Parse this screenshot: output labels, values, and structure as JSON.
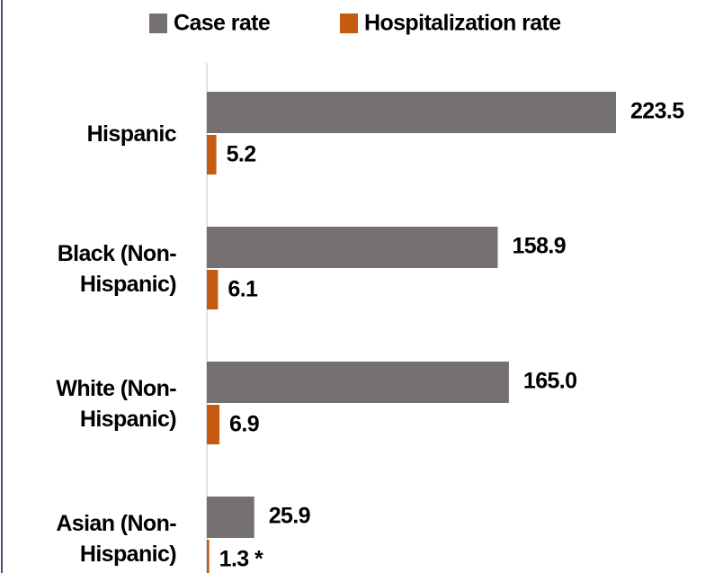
{
  "chart_data": {
    "type": "hbar",
    "categories": [
      "Hispanic",
      "Black (Non-Hispanic)",
      "White (Non-Hispanic)",
      "Asian (Non-Hispanic)"
    ],
    "series": [
      {
        "name": "Case rate",
        "color": "#767171",
        "values": [
          223.5,
          158.9,
          165.0,
          25.9
        ],
        "value_labels": [
          "223.5",
          "158.9",
          "165.0",
          "25.9"
        ]
      },
      {
        "name": "Hospitalization rate",
        "color": "#c55a11",
        "values": [
          5.2,
          6.1,
          6.9,
          1.3
        ],
        "value_labels": [
          "5.2",
          "6.1",
          "6.9",
          "1.3 *"
        ]
      }
    ],
    "legend": "top"
  }
}
